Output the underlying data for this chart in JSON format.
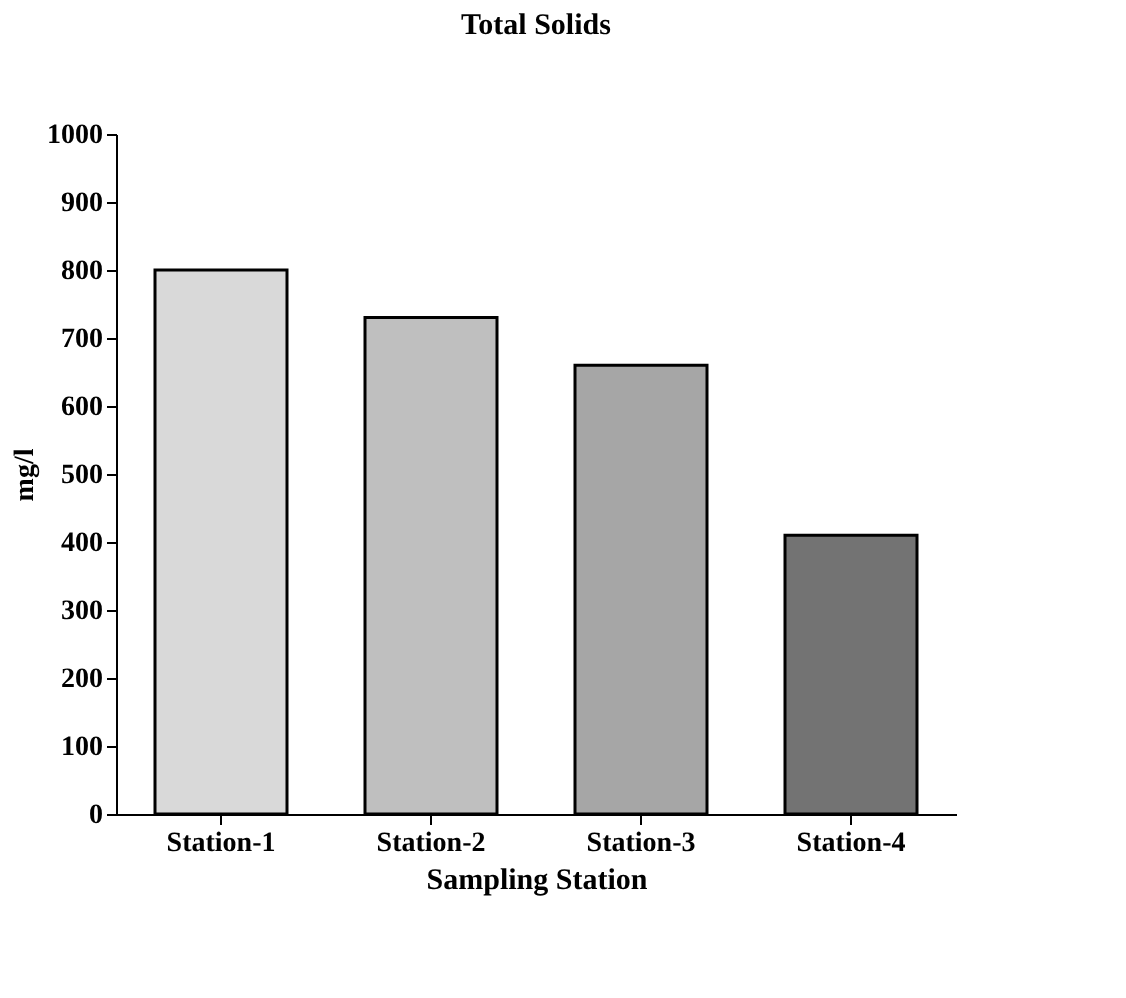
{
  "chart_data": {
    "type": "bar",
    "title": "Total Solids",
    "xlabel": "Sampling Station",
    "ylabel": "mg/l",
    "categories": [
      "Station-1",
      "Station-2",
      "Station-3",
      "Station-4"
    ],
    "values": [
      800,
      730,
      660,
      410
    ],
    "colors": [
      "#d9d9d9",
      "#bfbfbf",
      "#a6a6a6",
      "#737373"
    ],
    "ylim": [
      0,
      1000
    ],
    "yticks": [
      0,
      100,
      200,
      300,
      400,
      500,
      600,
      700,
      800,
      900,
      1000
    ],
    "grid": false
  }
}
